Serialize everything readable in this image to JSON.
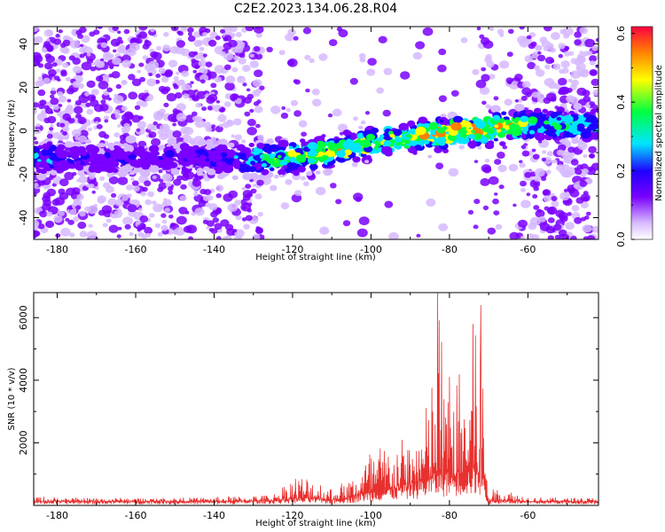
{
  "title": "C2E2.2023.134.06.28.R04",
  "chart_data": [
    {
      "type": "heatmap",
      "xlabel": "Height of straight line (km)",
      "ylabel": "Frequency (Hz)",
      "xlim": [
        -186,
        -42
      ],
      "ylim": [
        -50,
        48
      ],
      "xticks": [
        "-180",
        "-160",
        "-140",
        "-120",
        "-100",
        "-80",
        "-60"
      ],
      "yticks": [
        "-40",
        "-20",
        "0",
        "20",
        "40"
      ],
      "colorbar": {
        "label": "Normalized spectral amplitude",
        "range": [
          0,
          0.62
        ],
        "ticks": [
          "0.0",
          "0.2",
          "0.4",
          "0.6"
        ],
        "colors": [
          "#ffffff",
          "#d6b8ff",
          "#7a00ff",
          "#2000ff",
          "#00e5ff",
          "#00ff40",
          "#ffff00",
          "#ff8000",
          "#ff0040"
        ]
      },
      "signal_band": {
        "x": [
          -186,
          -175,
          -160,
          -145,
          -135,
          -125,
          -115,
          -105,
          -95,
          -85,
          -75,
          -65,
          -55
        ],
        "center_hz": [
          -12,
          -13,
          -13,
          -12,
          -13,
          -13,
          -11,
          -8,
          -4,
          -2,
          0,
          2,
          3
        ],
        "peak_amplitude": [
          0.25,
          0.15,
          0.12,
          0.14,
          0.2,
          0.35,
          0.4,
          0.45,
          0.42,
          0.48,
          0.55,
          0.45,
          0.3
        ]
      }
    },
    {
      "type": "line",
      "xlabel": "Height of straight line (km)",
      "ylabel": "SNR (10 * v/v)",
      "xlim": [
        -186,
        -42
      ],
      "ylim": [
        0,
        6800
      ],
      "xticks": [
        "-180",
        "-160",
        "-140",
        "-120",
        "-100",
        "-80",
        "-60"
      ],
      "yticks": [
        "2000",
        "4000",
        "6000"
      ],
      "color": "#e8312f",
      "envelope": {
        "x": [
          -186,
          -175,
          -160,
          -145,
          -135,
          -125,
          -120,
          -115,
          -110,
          -105,
          -100,
          -95,
          -90,
          -85,
          -83,
          -80,
          -75,
          -72,
          -70,
          -68,
          -65,
          -60,
          -55,
          -50,
          -42
        ],
        "peak": [
          300,
          250,
          250,
          250,
          300,
          350,
          1000,
          1000,
          600,
          900,
          1900,
          2100,
          2200,
          3500,
          6800,
          4100,
          4600,
          6400,
          400,
          600,
          500,
          300,
          250,
          250,
          250
        ],
        "base": [
          120,
          120,
          120,
          120,
          120,
          150,
          200,
          200,
          150,
          250,
          400,
          500,
          600,
          800,
          900,
          900,
          1000,
          1000,
          120,
          150,
          150,
          120,
          120,
          120,
          120
        ]
      }
    }
  ]
}
